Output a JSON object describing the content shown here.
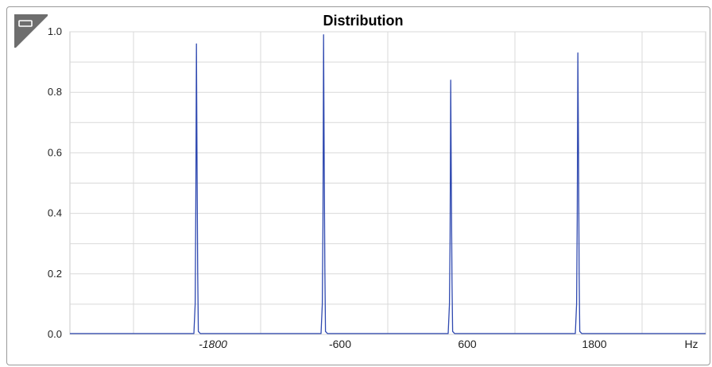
{
  "chart_data": {
    "type": "line",
    "title": "Distribution",
    "xlabel": "",
    "ylabel": "",
    "x_unit": "Hz",
    "xlim": [
      -3000,
      3000
    ],
    "ylim": [
      0,
      1.0
    ],
    "grid": true,
    "x_ticks": [
      -1800,
      -600,
      600,
      1800
    ],
    "x_tick_labels": [
      "-1800",
      "-600",
      "600",
      "1800"
    ],
    "y_ticks": [
      0.0,
      0.2,
      0.4,
      0.6,
      0.8,
      1.0
    ],
    "y_tick_labels": [
      "0.0",
      "0.2",
      "0.4",
      "0.6",
      "0.8",
      "1.0"
    ],
    "series": [
      {
        "color": "#2f49b0",
        "points": [
          [
            -3000,
            0.003
          ],
          [
            -1830,
            0.003
          ],
          [
            -1818,
            0.1
          ],
          [
            -1812,
            0.42
          ],
          [
            -1806,
            0.96
          ],
          [
            -1800,
            0.55
          ],
          [
            -1794,
            0.2
          ],
          [
            -1788,
            0.01
          ],
          [
            -1770,
            0.003
          ],
          [
            -630,
            0.003
          ],
          [
            -618,
            0.1
          ],
          [
            -612,
            0.36
          ],
          [
            -606,
            0.99
          ],
          [
            -600,
            0.57
          ],
          [
            -594,
            0.22
          ],
          [
            -588,
            0.01
          ],
          [
            -570,
            0.003
          ],
          [
            570,
            0.003
          ],
          [
            582,
            0.1
          ],
          [
            588,
            0.32
          ],
          [
            594,
            0.84
          ],
          [
            600,
            0.48
          ],
          [
            606,
            0.18
          ],
          [
            612,
            0.01
          ],
          [
            630,
            0.003
          ],
          [
            1770,
            0.003
          ],
          [
            1782,
            0.1
          ],
          [
            1788,
            0.38
          ],
          [
            1794,
            0.93
          ],
          [
            1800,
            0.62
          ],
          [
            1806,
            0.2
          ],
          [
            1812,
            0.01
          ],
          [
            1830,
            0.003
          ],
          [
            3000,
            0.003
          ]
        ]
      }
    ]
  }
}
